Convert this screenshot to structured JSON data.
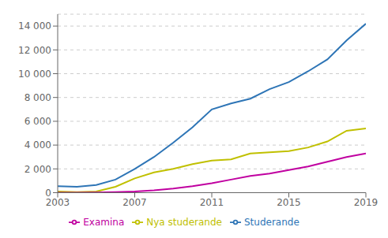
{
  "chart_data": {
    "type": "line",
    "x": [
      2003,
      2004,
      2005,
      2006,
      2007,
      2008,
      2009,
      2010,
      2011,
      2012,
      2013,
      2014,
      2015,
      2016,
      2017,
      2018,
      2019
    ],
    "series": [
      {
        "name": "Studerande",
        "color": "#2e75b6",
        "values": [
          550,
          500,
          650,
          1100,
          2000,
          3000,
          4200,
          5500,
          7000,
          7500,
          7900,
          8700,
          9300,
          10200,
          11200,
          12800,
          14200
        ]
      },
      {
        "name": "Nya studerande",
        "color": "#c0c000",
        "values": [
          100,
          50,
          100,
          500,
          1200,
          1700,
          2000,
          2400,
          2700,
          2800,
          3300,
          3400,
          3500,
          3800,
          4300,
          5200,
          5400
        ]
      },
      {
        "name": "Examina",
        "color": "#c000a0",
        "values": [
          0,
          0,
          10,
          50,
          100,
          200,
          350,
          550,
          800,
          1100,
          1400,
          1600,
          1900,
          2200,
          2600,
          3000,
          3300
        ]
      }
    ],
    "xlim": [
      2003,
      2019
    ],
    "xticks": [
      2003,
      2007,
      2011,
      2015,
      2019
    ],
    "ylim": [
      0,
      15000
    ],
    "yticks": [
      0,
      {
        "value": 2000,
        "label": "2 000"
      },
      {
        "value": 4000,
        "label": "4 000"
      },
      {
        "value": 6000,
        "label": "6 000"
      },
      {
        "value": 8000,
        "label": "8 000"
      },
      {
        "value": 10000,
        "label": "10 000"
      },
      {
        "value": 12000,
        "label": "12 000"
      },
      {
        "value": 14000,
        "label": "14 000"
      }
    ],
    "grid": true,
    "legend": "bottom"
  }
}
